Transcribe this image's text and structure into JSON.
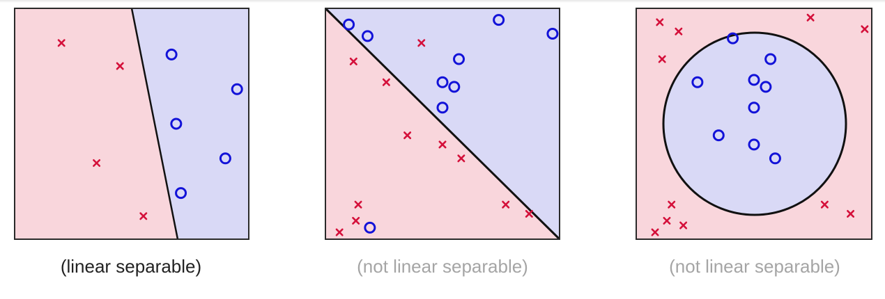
{
  "colors": {
    "class_x_region": "#f9d6dc",
    "class_o_region": "#d9d9f6",
    "x_marker": "#d4103a",
    "o_marker": "#1212d8",
    "boundary": "#111111",
    "caption_active": "#222222",
    "caption_dim": "#a5a5a5"
  },
  "panels": [
    {
      "caption": "(linear separable)",
      "caption_state": "active",
      "boundary_type": "line",
      "x_points": [
        [
          0.2,
          0.85
        ],
        [
          0.45,
          0.75
        ],
        [
          0.35,
          0.33
        ],
        [
          0.55,
          0.1
        ]
      ],
      "o_points": [
        [
          0.67,
          0.8
        ],
        [
          0.95,
          0.65
        ],
        [
          0.69,
          0.5
        ],
        [
          0.9,
          0.35
        ],
        [
          0.71,
          0.2
        ]
      ]
    },
    {
      "caption": "(not linear separable)",
      "caption_state": "dim",
      "boundary_type": "line",
      "x_points": [
        [
          0.41,
          0.85
        ],
        [
          0.12,
          0.77
        ],
        [
          0.26,
          0.68
        ],
        [
          0.35,
          0.45
        ],
        [
          0.5,
          0.41
        ],
        [
          0.58,
          0.35
        ],
        [
          0.77,
          0.15
        ],
        [
          0.87,
          0.11
        ],
        [
          0.14,
          0.15
        ],
        [
          0.13,
          0.08
        ],
        [
          0.06,
          0.03
        ]
      ],
      "o_points": [
        [
          0.1,
          0.93
        ],
        [
          0.18,
          0.88
        ],
        [
          0.74,
          0.95
        ],
        [
          0.97,
          0.89
        ],
        [
          0.57,
          0.78
        ],
        [
          0.5,
          0.68
        ],
        [
          0.55,
          0.66
        ],
        [
          0.5,
          0.57
        ],
        [
          0.19,
          0.05
        ]
      ]
    },
    {
      "caption": "(not linear separable)",
      "caption_state": "dim",
      "boundary_type": "circle",
      "x_points": [
        [
          0.1,
          0.94
        ],
        [
          0.18,
          0.9
        ],
        [
          0.11,
          0.78
        ],
        [
          0.74,
          0.96
        ],
        [
          0.97,
          0.91
        ],
        [
          0.15,
          0.15
        ],
        [
          0.13,
          0.08
        ],
        [
          0.2,
          0.06
        ],
        [
          0.08,
          0.03
        ],
        [
          0.8,
          0.15
        ],
        [
          0.91,
          0.11
        ]
      ],
      "o_points": [
        [
          0.41,
          0.87
        ],
        [
          0.57,
          0.78
        ],
        [
          0.26,
          0.68
        ],
        [
          0.5,
          0.69
        ],
        [
          0.55,
          0.66
        ],
        [
          0.5,
          0.57
        ],
        [
          0.35,
          0.45
        ],
        [
          0.5,
          0.41
        ],
        [
          0.59,
          0.35
        ]
      ]
    }
  ]
}
